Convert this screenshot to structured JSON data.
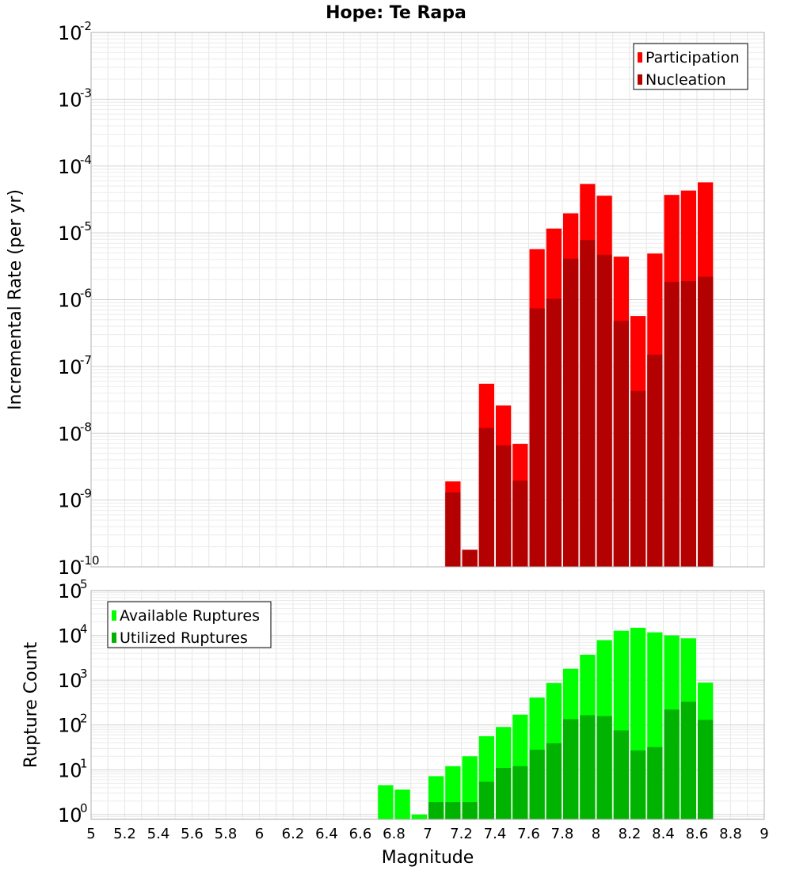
{
  "chart_data": {
    "title": "Hope: Te Rapa",
    "xlabel": "Magnitude",
    "x_ticks": [
      "5",
      "5.2",
      "5.4",
      "5.6",
      "5.8",
      "6",
      "6.2",
      "6.4",
      "6.6",
      "6.8",
      "7",
      "7.2",
      "7.4",
      "7.6",
      "7.8",
      "8",
      "8.2",
      "8.4",
      "8.6",
      "8.8",
      "9"
    ],
    "xlim": [
      5,
      9
    ],
    "bar_width": 0.1,
    "panels": [
      {
        "type": "bar",
        "ylabel": "Incremental Rate (per yr)",
        "yscale": "log",
        "ylim": [
          1e-10,
          0.01
        ],
        "y_tick_exponents": [
          "-2",
          "-3",
          "-4",
          "-5",
          "-6",
          "-7",
          "-8",
          "-9",
          "-10"
        ],
        "grid": true,
        "legend_position": "top-right",
        "series": [
          {
            "name": "Participation",
            "color": "#ff0000",
            "x": [
              7.15,
              7.25,
              7.35,
              7.45,
              7.55,
              7.65,
              7.75,
              7.85,
              7.95,
              8.05,
              8.15,
              8.25,
              8.35,
              8.45,
              8.55,
              8.65
            ],
            "values": [
              1.9e-09,
              1.8e-10,
              5.5e-08,
              2.6e-08,
              6.9e-09,
              5.7e-06,
              1.16e-05,
              1.96e-05,
              5.4e-05,
              3.6e-05,
              4.4e-06,
              5.7e-07,
              4.9e-06,
              3.7e-05,
              4.3e-05,
              5.7e-05
            ]
          },
          {
            "name": "Nucleation",
            "color": "#b30000",
            "x": [
              7.15,
              7.25,
              7.35,
              7.45,
              7.55,
              7.65,
              7.75,
              7.85,
              7.95,
              8.05,
              8.15,
              8.25,
              8.35,
              8.45,
              8.55,
              8.65
            ],
            "values": [
              1.3e-09,
              1.8e-10,
              1.2e-08,
              6.6e-09,
              1.95e-09,
              7.4e-07,
              1.03e-06,
              4.1e-06,
              7.8e-06,
              4.7e-06,
              4.8e-07,
              4.3e-08,
              1.5e-07,
              1.85e-06,
              1.9e-06,
              2.2e-06
            ]
          }
        ]
      },
      {
        "type": "bar",
        "ylabel": "Rupture Count",
        "yscale": "log",
        "ylim": [
          0.78,
          100000.0
        ],
        "y_tick_exponents": [
          "5",
          "4",
          "3",
          "2",
          "1",
          "0"
        ],
        "grid": true,
        "legend_position": "top-left",
        "series": [
          {
            "name": "Available Ruptures",
            "color": "#00ff00",
            "x": [
              6.75,
              6.85,
              6.95,
              7.05,
              7.15,
              7.25,
              7.35,
              7.45,
              7.55,
              7.65,
              7.75,
              7.85,
              7.95,
              8.05,
              8.15,
              8.25,
              8.35,
              8.45,
              8.55,
              8.65
            ],
            "values": [
              4.5,
              3.6,
              1,
              7.2,
              12,
              20,
              56,
              90,
              170,
              410,
              860,
              1800,
              3700,
              7800,
              12700,
              14800,
              11700,
              10000,
              8600,
              880
            ]
          },
          {
            "name": "Utilized Ruptures",
            "color": "#00b300",
            "x": [
              6.75,
              6.85,
              6.95,
              7.05,
              7.15,
              7.25,
              7.35,
              7.45,
              7.55,
              7.65,
              7.75,
              7.85,
              7.95,
              8.05,
              8.15,
              8.25,
              8.35,
              8.45,
              8.55,
              8.65
            ],
            "values": [
              0,
              0,
              0,
              1.9,
              1.9,
              1.9,
              5.4,
              11,
              12,
              28,
              39,
              135,
              165,
              158,
              76,
              27,
              32,
              220,
              330,
              130
            ]
          }
        ]
      }
    ]
  }
}
